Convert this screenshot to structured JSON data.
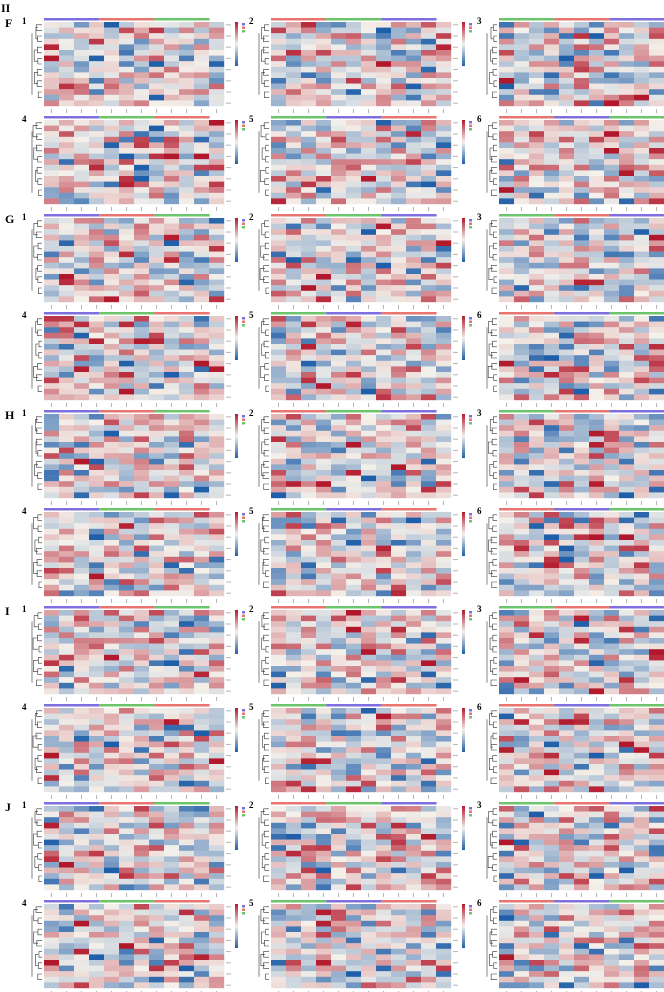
{
  "figure": {
    "label": "II"
  },
  "sections": [
    {
      "label": "F",
      "panels": [
        "1",
        "2",
        "3",
        "4",
        "5",
        "6"
      ]
    },
    {
      "label": "G",
      "panels": [
        "1",
        "2",
        "3",
        "4",
        "5",
        "6"
      ]
    },
    {
      "label": "H",
      "panels": [
        "1",
        "2",
        "3",
        "4",
        "5",
        "6"
      ]
    },
    {
      "label": "I",
      "panels": [
        "1",
        "2",
        "3",
        "4",
        "5",
        "6"
      ]
    },
    {
      "label": "J",
      "panels": [
        "1",
        "2",
        "3",
        "4",
        "5",
        "6"
      ]
    }
  ],
  "chart_data": {
    "type": "heatmap",
    "panel_count": 30,
    "grid": {
      "rows": 15,
      "columns": 12
    },
    "colors": {
      "low": "#1f5ea8",
      "mid": "#f4f0ea",
      "high": "#b2182b"
    },
    "annotation_bar_colors": [
      "#7d6fe0",
      "#e8756f",
      "#6cc56a"
    ],
    "color_scale": [
      -3,
      3
    ],
    "legend_ticks": [
      "3",
      "2",
      "1",
      "0",
      "-1",
      "-2",
      "-3"
    ],
    "annotation_legend_labels": [
      "Group",
      "A",
      "B",
      "C"
    ]
  }
}
